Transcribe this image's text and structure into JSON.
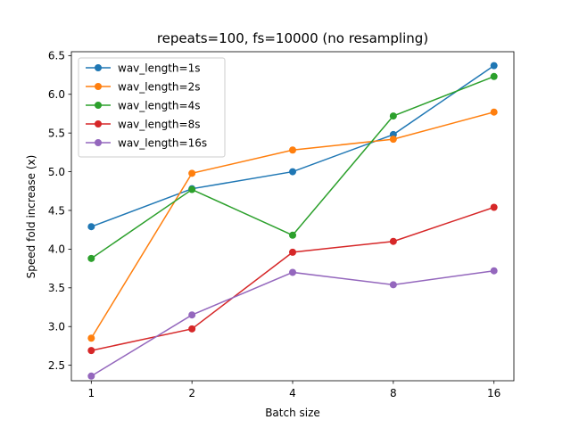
{
  "chart_data": {
    "type": "line",
    "title": "repeats=100, fs=10000 (no resampling)",
    "xlabel": "Batch size",
    "ylabel": "Speed fold increase (x)",
    "categories": [
      "1",
      "2",
      "4",
      "8",
      "16"
    ],
    "ylim": [
      2.3,
      6.55
    ],
    "yticks": [
      "2.5",
      "3.0",
      "3.5",
      "4.0",
      "4.5",
      "5.0",
      "5.5",
      "6.0",
      "6.5"
    ],
    "grid": false,
    "legend_position": "top-left",
    "series": [
      {
        "name": "wav_length=1s",
        "color": "#1f77b4",
        "values": [
          4.29,
          4.78,
          5.0,
          5.48,
          6.37
        ]
      },
      {
        "name": "wav_length=2s",
        "color": "#ff7f0e",
        "values": [
          2.85,
          4.98,
          5.28,
          5.42,
          5.77
        ]
      },
      {
        "name": "wav_length=4s",
        "color": "#2ca02c",
        "values": [
          3.88,
          4.77,
          4.18,
          5.72,
          6.23
        ]
      },
      {
        "name": "wav_length=8s",
        "color": "#d62728",
        "values": [
          2.69,
          2.97,
          3.96,
          4.1,
          4.54
        ]
      },
      {
        "name": "wav_length=16s",
        "color": "#9467bd",
        "values": [
          2.36,
          3.15,
          3.7,
          3.54,
          3.72
        ]
      }
    ]
  }
}
